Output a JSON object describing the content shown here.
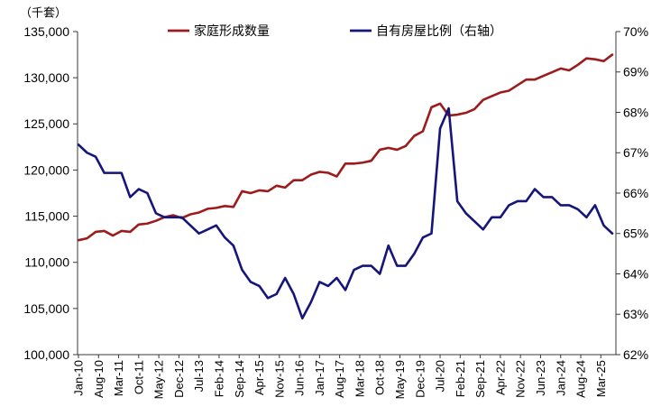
{
  "chart_data": {
    "type": "line",
    "ylabel": "（千套）",
    "ylim": [
      100000,
      135000
    ],
    "y_ticks": [
      "100,000",
      "105,000",
      "110,000",
      "115,000",
      "120,000",
      "125,000",
      "130,000",
      "135,000"
    ],
    "y2lim": [
      62,
      70
    ],
    "y2_ticks": [
      "62%",
      "63%",
      "64%",
      "65%",
      "66%",
      "67%",
      "68%",
      "69%",
      "70%"
    ],
    "x_ticks": [
      "Jan-10",
      "Aug-10",
      "Mar-11",
      "Oct-11",
      "May-12",
      "Dec-12",
      "Jul-13",
      "Feb-14",
      "Sep-14",
      "Apr-15",
      "Nov-15",
      "Jun-16",
      "Jan-17",
      "Aug-17",
      "Mar-18",
      "Oct-18",
      "May-19",
      "Dec-19",
      "Jul-20",
      "Feb-21",
      "Sep-21",
      "Apr-22",
      "Nov-22",
      "Jun-23",
      "Jan-24",
      "Aug-24",
      "Mar-25"
    ],
    "x": [
      "Jan-10",
      "Apr-10",
      "Jul-10",
      "Oct-10",
      "Jan-11",
      "Apr-11",
      "Jul-11",
      "Oct-11",
      "Jan-12",
      "Apr-12",
      "Jul-12",
      "Oct-12",
      "Jan-13",
      "Apr-13",
      "Jul-13",
      "Oct-13",
      "Jan-14",
      "Apr-14",
      "Jul-14",
      "Oct-14",
      "Jan-15",
      "Apr-15",
      "Jul-15",
      "Oct-15",
      "Jan-16",
      "Apr-16",
      "Jul-16",
      "Oct-16",
      "Jan-17",
      "Apr-17",
      "Jul-17",
      "Oct-17",
      "Jan-18",
      "Apr-18",
      "Jul-18",
      "Oct-18",
      "Jan-19",
      "Apr-19",
      "Jul-19",
      "Oct-19",
      "Jan-20",
      "Apr-20",
      "Jul-20",
      "Oct-20",
      "Jan-21",
      "Apr-21",
      "Jul-21",
      "Oct-21",
      "Jan-22",
      "Apr-22",
      "Jul-22",
      "Oct-22",
      "Jan-23",
      "Apr-23",
      "Jul-23",
      "Oct-23",
      "Jan-24",
      "Apr-24",
      "Jul-24",
      "Oct-24",
      "Jan-25",
      "Apr-25",
      "Jul-25"
    ],
    "series": [
      {
        "name": "家庭形成数量",
        "axis": "left",
        "color": "#9c1c1c",
        "values": [
          112400,
          112600,
          113300,
          113400,
          112900,
          113400,
          113300,
          114100,
          114200,
          114500,
          114900,
          115100,
          114800,
          115200,
          115400,
          115800,
          115900,
          116100,
          116000,
          117700,
          117500,
          117800,
          117700,
          118300,
          118100,
          118900,
          118900,
          119500,
          119800,
          119700,
          119300,
          120700,
          120700,
          120800,
          121000,
          122200,
          122400,
          122200,
          122600,
          123700,
          124200,
          126800,
          127200,
          125900,
          126000,
          126200,
          126600,
          127600,
          128000,
          128400,
          128600,
          129200,
          129800,
          129800,
          130200,
          130600,
          131000,
          130800,
          131400,
          132100,
          132000,
          131800,
          132500
        ]
      },
      {
        "name": "自有房屋比例（右轴）",
        "axis": "right",
        "color": "#15157a",
        "values": [
          67.2,
          67.0,
          66.9,
          66.5,
          66.5,
          66.5,
          65.9,
          66.1,
          66.0,
          65.5,
          65.4,
          65.4,
          65.4,
          65.2,
          65.0,
          65.1,
          65.2,
          64.9,
          64.7,
          64.1,
          63.8,
          63.7,
          63.4,
          63.5,
          63.9,
          63.5,
          62.9,
          63.3,
          63.8,
          63.7,
          63.9,
          63.6,
          64.1,
          64.2,
          64.2,
          64.0,
          64.7,
          64.2,
          64.2,
          64.5,
          64.9,
          65.0,
          67.6,
          68.1,
          65.8,
          65.5,
          65.3,
          65.1,
          65.4,
          65.4,
          65.7,
          65.8,
          65.8,
          66.1,
          65.9,
          65.9,
          65.7,
          65.7,
          65.6,
          65.4,
          65.7,
          65.2,
          65.0
        ]
      }
    ],
    "legend": "top",
    "grid": false
  }
}
